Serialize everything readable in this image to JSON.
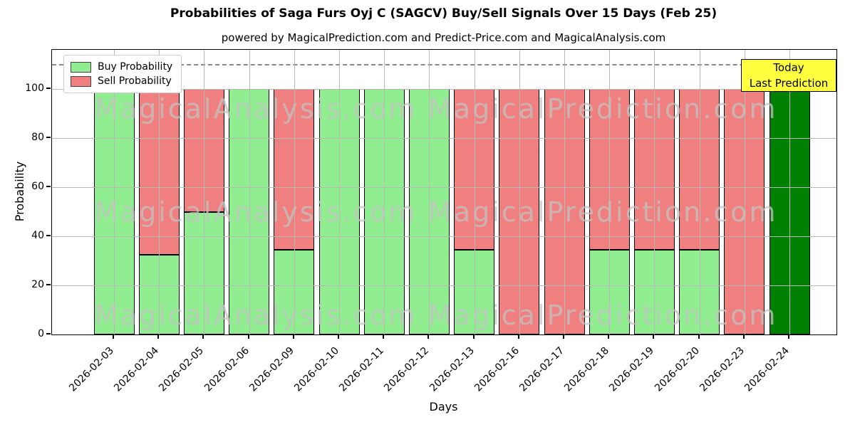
{
  "chart_data": {
    "type": "bar",
    "stacked": true,
    "title": "Probabilities of Saga Furs Oyj C (SAGCV) Buy/Sell Signals Over 15 Days (Feb 25)",
    "subtitle": "powered by MagicalPrediction.com and Predict-Price.com and MagicalAnalysis.com",
    "xlabel": "Days",
    "ylabel": "Probability",
    "ylim": [
      0,
      116
    ],
    "yticks": [
      0,
      20,
      40,
      60,
      80,
      100
    ],
    "reference_line_y": 110,
    "grid": true,
    "legend_position": "upper-left",
    "categories": [
      "2026-02-03",
      "2026-02-04",
      "2026-02-05",
      "2026-02-06",
      "2026-02-09",
      "2026-02-10",
      "2026-02-11",
      "2026-02-12",
      "2026-02-13",
      "2026-02-16",
      "2026-02-17",
      "2026-02-18",
      "2026-02-19",
      "2026-02-20",
      "2026-02-23",
      "2026-02-24"
    ],
    "series": [
      {
        "name": "Buy Probability",
        "color": "#90ee90",
        "values": [
          100,
          32.5,
          50,
          100,
          34.5,
          100,
          100,
          100,
          34.5,
          0,
          0,
          34.5,
          34.5,
          34.5,
          0,
          100
        ]
      },
      {
        "name": "Sell Probability",
        "color": "#f08080",
        "values": [
          0,
          67.5,
          50,
          0,
          65.5,
          0,
          0,
          0,
          65.5,
          100,
          100,
          65.5,
          65.5,
          65.5,
          100,
          0
        ]
      }
    ],
    "today": {
      "index": 15,
      "bar_color": "#008000",
      "label_line1": "Today",
      "label_line2": "Last Prediction",
      "box_color": "#ffff40"
    },
    "watermarks": {
      "left_text": "MagicalAnalysis.com",
      "right_text": "MagicalPrediction.com",
      "rows": 3
    },
    "colors": {
      "grid": "#b8b8b8",
      "reference_line": "#888888",
      "bar_edge": "#000000"
    }
  }
}
